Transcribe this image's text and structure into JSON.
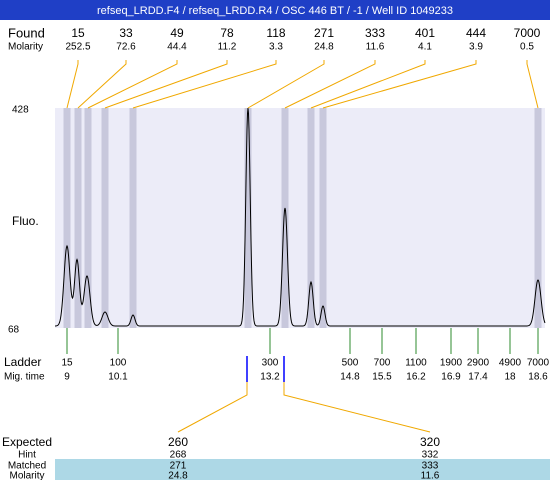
{
  "header": {
    "title": "refseq_LRDD.F4 / refseq_LRDD.R4 / OSC 446 BT / -1 / Well ID 1049233"
  },
  "found": {
    "label": "Found",
    "molarity_label": "Molarity",
    "peaks": [
      {
        "size": "15",
        "molarity": "252.5"
      },
      {
        "size": "33",
        "molarity": "72.6"
      },
      {
        "size": "49",
        "molarity": "44.4"
      },
      {
        "size": "78",
        "molarity": "11.2"
      },
      {
        "size": "118",
        "molarity": "3.3"
      },
      {
        "size": "271",
        "molarity": "24.8"
      },
      {
        "size": "333",
        "molarity": "11.6"
      },
      {
        "size": "401",
        "molarity": "4.1"
      },
      {
        "size": "444",
        "molarity": "3.9"
      },
      {
        "size": "7000",
        "molarity": "0.5"
      }
    ]
  },
  "axis": {
    "top": "428",
    "bottom": "68",
    "label": "Fluo."
  },
  "ladder": {
    "label": "Ladder",
    "time_label": "Mig. time",
    "items": [
      {
        "size": "15",
        "time": "9"
      },
      {
        "size": "100",
        "time": "10.1"
      },
      {
        "size": "300",
        "time": "13.2"
      },
      {
        "size": "500",
        "time": "14.8"
      },
      {
        "size": "700",
        "time": "15.5"
      },
      {
        "size": "1100",
        "time": "16.2"
      },
      {
        "size": "1900",
        "time": "16.9"
      },
      {
        "size": "2900",
        "time": "17.4"
      },
      {
        "size": "4900",
        "time": "18"
      },
      {
        "size": "7000",
        "time": "18.6"
      }
    ]
  },
  "expected": {
    "labels": [
      "Expected",
      "Hint",
      "Matched",
      "Molarity"
    ],
    "columns": [
      {
        "expected": "260",
        "hint": "268",
        "matched": "271",
        "molarity": "24.8"
      },
      {
        "expected": "320",
        "hint": "332",
        "matched": "333",
        "molarity": "11.6"
      }
    ]
  }
}
